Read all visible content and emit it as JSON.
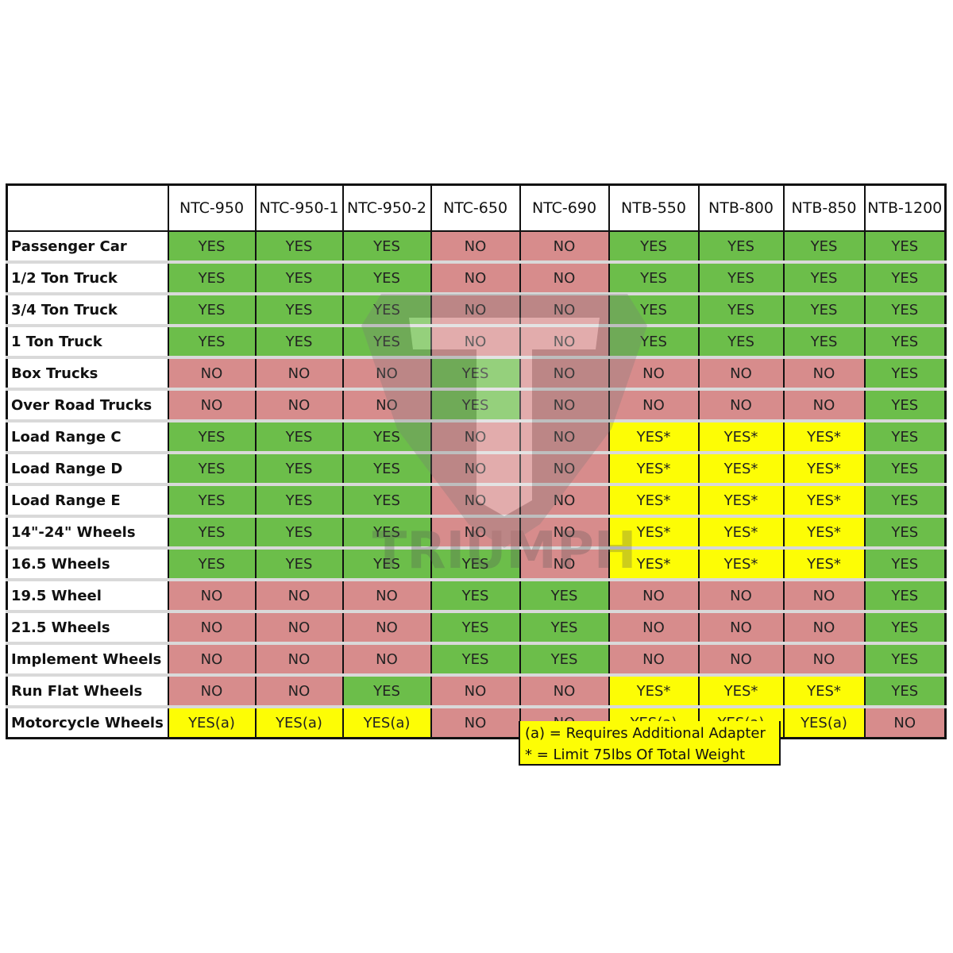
{
  "columns": [
    "NTC-950",
    "NTC-950-1",
    "NTC-950-2",
    "NTC-650",
    "NTC-690",
    "NTB-550",
    "NTB-800",
    "NTB-850",
    "NTB-1200"
  ],
  "rows": [
    {
      "label": "Passenger Car",
      "values": [
        "YES",
        "YES",
        "YES",
        "NO",
        "NO",
        "YES",
        "YES",
        "YES",
        "YES"
      ]
    },
    {
      "label": "1/2 Ton Truck",
      "values": [
        "YES",
        "YES",
        "YES",
        "NO",
        "NO",
        "YES",
        "YES",
        "YES",
        "YES"
      ]
    },
    {
      "label": "3/4 Ton Truck",
      "values": [
        "YES",
        "YES",
        "YES",
        "NO",
        "NO",
        "YES",
        "YES",
        "YES",
        "YES"
      ]
    },
    {
      "label": "1 Ton Truck",
      "values": [
        "YES",
        "YES",
        "YES",
        "NO",
        "NO",
        "YES",
        "YES",
        "YES",
        "YES"
      ]
    },
    {
      "label": "Box Trucks",
      "values": [
        "NO",
        "NO",
        "NO",
        "YES",
        "NO",
        "NO",
        "NO",
        "NO",
        "YES"
      ]
    },
    {
      "label": "Over Road Trucks",
      "values": [
        "NO",
        "NO",
        "NO",
        "YES",
        "NO",
        "NO",
        "NO",
        "NO",
        "YES"
      ]
    },
    {
      "label": "Load Range C",
      "values": [
        "YES",
        "YES",
        "YES",
        "NO",
        "NO",
        "YES*",
        "YES*",
        "YES*",
        "YES"
      ]
    },
    {
      "label": "Load Range D",
      "values": [
        "YES",
        "YES",
        "YES",
        "NO",
        "NO",
        "YES*",
        "YES*",
        "YES*",
        "YES"
      ]
    },
    {
      "label": "Load Range E",
      "values": [
        "YES",
        "YES",
        "YES",
        "NO",
        "NO",
        "YES*",
        "YES*",
        "YES*",
        "YES"
      ]
    },
    {
      "label": "14\"-24\" Wheels",
      "values": [
        "YES",
        "YES",
        "YES",
        "NO",
        "NO",
        "YES*",
        "YES*",
        "YES*",
        "YES"
      ]
    },
    {
      "label": "16.5 Wheels",
      "values": [
        "YES",
        "YES",
        "YES",
        "YES",
        "NO",
        "YES*",
        "YES*",
        "YES*",
        "YES"
      ]
    },
    {
      "label": "19.5 Wheel",
      "values": [
        "NO",
        "NO",
        "NO",
        "YES",
        "YES",
        "NO",
        "NO",
        "NO",
        "YES"
      ]
    },
    {
      "label": "21.5 Wheels",
      "values": [
        "NO",
        "NO",
        "NO",
        "YES",
        "YES",
        "NO",
        "NO",
        "NO",
        "YES"
      ]
    },
    {
      "label": "Implement Wheels",
      "values": [
        "NO",
        "NO",
        "NO",
        "YES",
        "YES",
        "NO",
        "NO",
        "NO",
        "YES"
      ]
    },
    {
      "label": "Run Flat Wheels",
      "values": [
        "NO",
        "NO",
        "YES",
        "NO",
        "NO",
        "YES*",
        "YES*",
        "YES*",
        "YES"
      ]
    },
    {
      "label": "Motorcycle Wheels",
      "values": [
        "YES(a)",
        "YES(a)",
        "YES(a)",
        "NO",
        "NO",
        "YES(a)",
        "YES(a)",
        "YES(a)",
        "NO"
      ]
    }
  ],
  "legend": {
    "line1": "(a) = Requires Additional Adapter",
    "line2": "* = Limit 75lbs Of Total Weight"
  },
  "watermark": {
    "text": "TRIUMPH"
  },
  "colors": {
    "yes": "#6cbe4a",
    "no": "#d78c8c",
    "conditional": "#fdfd05"
  }
}
